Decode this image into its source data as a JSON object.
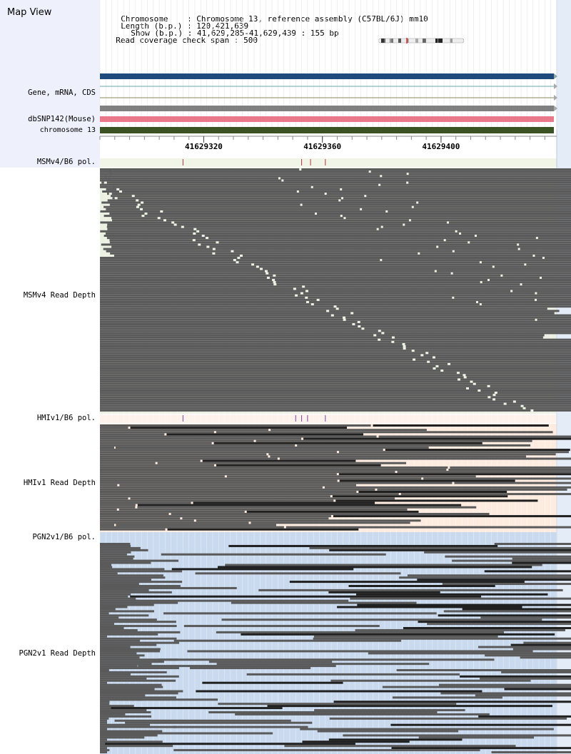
{
  "title": "Map View",
  "info": {
    "chromosome_key": "Chromosome",
    "chromosome_val": "Chromosome 13, reference assembly (C57BL/6J) mm10",
    "length_key": "Length (b.p.)",
    "length_val": "120,421,639",
    "show_key": "Show (b.p.)",
    "show_val": "41,629,285-41,629,439 : 155 bp",
    "coverage_key": "Read coverage check span",
    "coverage_val": "500"
  },
  "tracks": {
    "gene_label": "Gene, mRNA, CDS",
    "snp_label": "dbSNP142(Mouse)",
    "chrom_label": "chromosome 13",
    "msm_pol_label": "MSMv4/B6 pol.",
    "msm_depth_label": "MSMv4 Read Depth",
    "hmi_pol_label": "HMIv1/B6 pol.",
    "hmi_depth_label": "HMIv1 Read Depth",
    "pgn_pol_label": "PGN2v1/B6 pol.",
    "pgn_depth_label": "PGN2v1 Read Depth"
  },
  "ruler": {
    "start": 41629285,
    "end": 41629439,
    "ticks": [
      "41629320",
      "41629360",
      "41629400"
    ]
  },
  "colors": {
    "gene_bar": "#1f4a7e",
    "snp_bar": "#e8788a",
    "chrom_bar": "#3b5323",
    "msm_bg": "#ecf0e2",
    "hmi_bg": "#fdebe0",
    "pgn_bg": "#c9d9ee",
    "read": "#5a5a5a",
    "read_dark": "#202020",
    "pol_mark": "#b03040",
    "pol_mark_hmi": "#8040a0"
  },
  "polymorphisms": {
    "msm": [
      41629313,
      41629353,
      41629356,
      41629361
    ],
    "hmi": [
      41629313,
      41629351,
      41629353,
      41629355,
      41629361
    ]
  }
}
